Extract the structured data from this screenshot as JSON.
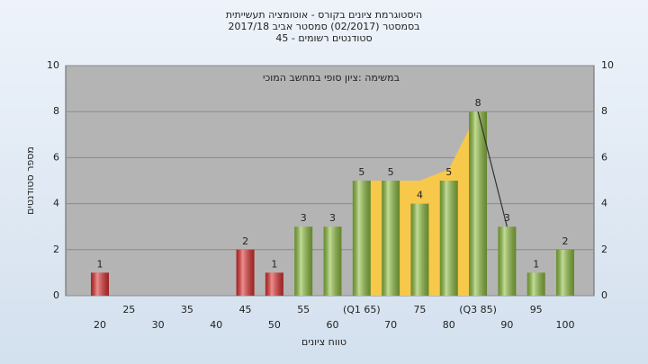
{
  "chart_data": {
    "type": "bar",
    "title_lines": [
      "היסטוגרמת ציונים בקורס - אוטומציה תעשייתית",
      "בסמסטר  (02/2017)  סמסטר אביב 2017/18",
      "סטודנטים רשומים - 45"
    ],
    "annotation": "במשימה :ציון סופי במחשב המוכי",
    "x_label": "טווח ציונים",
    "y_label": "מספר סטודנטים",
    "categories": [
      "20",
      "25",
      "30",
      "35",
      "40",
      "45",
      "50",
      "55",
      "60",
      "(Q1 65)",
      "70",
      "75",
      "80",
      "(Q3 85)",
      "90",
      "95",
      "100"
    ],
    "values": [
      1,
      0,
      0,
      0,
      0,
      2,
      1,
      3,
      3,
      5,
      5,
      4,
      5,
      8,
      3,
      1,
      2
    ],
    "colors": [
      "#e03030",
      "#e03030",
      "#e03030",
      "#e03030",
      "#e03030",
      "#e03030",
      "#e03030",
      "#8fbf3f",
      "#8fbf3f",
      "#8fbf3f",
      "#8fbf3f",
      "#8fbf3f",
      "#8fbf3f",
      "#8fbf3f",
      "#8fbf3f",
      "#8fbf3f",
      "#8fbf3f"
    ],
    "area": {
      "color": "#f7c84a",
      "values": [
        null,
        null,
        null,
        null,
        null,
        null,
        null,
        null,
        null,
        5,
        5,
        5,
        5.5,
        8,
        null,
        null,
        null
      ]
    },
    "line": {
      "color": "#333333",
      "values": [
        null,
        null,
        null,
        null,
        null,
        null,
        null,
        null,
        null,
        null,
        null,
        null,
        null,
        8,
        3,
        null,
        null
      ]
    },
    "ylim": [
      0,
      10
    ],
    "yticks": [
      0,
      2,
      4,
      6,
      8,
      10
    ],
    "grid": true
  }
}
